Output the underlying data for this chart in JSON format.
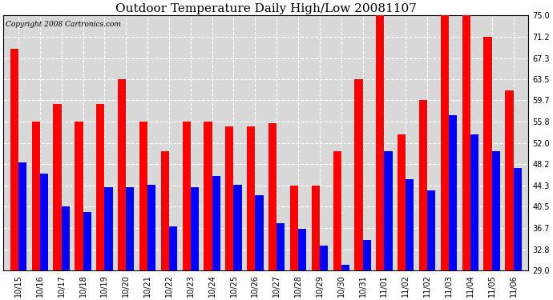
{
  "title": "Outdoor Temperature Daily High/Low 20081107",
  "copyright": "Copyright 2008 Cartronics.com",
  "dates": [
    "10/15",
    "10/16",
    "10/17",
    "10/18",
    "10/19",
    "10/20",
    "10/21",
    "10/22",
    "10/23",
    "10/24",
    "10/25",
    "10/26",
    "10/27",
    "10/28",
    "10/29",
    "10/30",
    "10/31",
    "11/01",
    "11/02",
    "11/02",
    "11/03",
    "11/04",
    "11/05",
    "11/06"
  ],
  "highs": [
    69.0,
    55.8,
    59.0,
    55.8,
    59.0,
    63.5,
    55.8,
    50.5,
    55.8,
    55.8,
    55.0,
    55.0,
    55.5,
    44.3,
    44.3,
    50.5,
    63.5,
    75.0,
    53.5,
    59.7,
    75.0,
    75.0,
    71.2,
    61.5
  ],
  "lows": [
    48.5,
    46.5,
    40.5,
    39.5,
    44.0,
    44.0,
    44.5,
    37.0,
    44.0,
    46.0,
    44.5,
    42.5,
    37.5,
    36.5,
    33.5,
    30.0,
    34.5,
    50.5,
    45.5,
    43.5,
    57.0,
    53.5,
    50.5,
    47.5
  ],
  "ylim": [
    29.0,
    75.0
  ],
  "yticks": [
    29.0,
    32.8,
    36.7,
    40.5,
    44.3,
    48.2,
    52.0,
    55.8,
    59.7,
    63.5,
    67.3,
    71.2,
    75.0
  ],
  "bar_width": 0.38,
  "high_color": "#ff0000",
  "low_color": "#0000ff",
  "bg_color": "#ffffff",
  "plot_bg_color": "#d8d8d8",
  "grid_color": "#ffffff",
  "title_fontsize": 11,
  "copyright_fontsize": 6.5,
  "tick_fontsize": 7,
  "dpi": 100,
  "figw": 6.9,
  "figh": 3.75
}
